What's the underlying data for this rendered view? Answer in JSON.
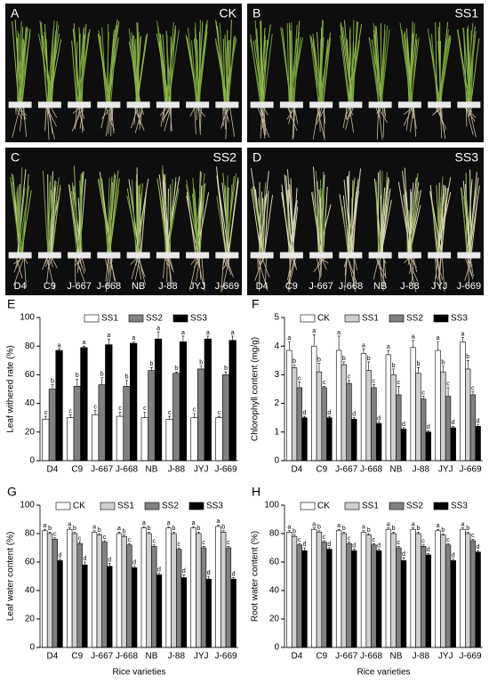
{
  "photos": {
    "panels": [
      {
        "letter": "A",
        "treatment": "CK"
      },
      {
        "letter": "B",
        "treatment": "SS1"
      },
      {
        "letter": "C",
        "treatment": "SS2",
        "labels": [
          "D4",
          "C9",
          "J-667",
          "J-668",
          "NB",
          "J-88",
          "JYJ",
          "J-669"
        ]
      },
      {
        "letter": "D",
        "treatment": "SS3",
        "labels": [
          "D4",
          "C9",
          "J-667",
          "J-668",
          "NB",
          "J-88",
          "JYJ",
          "J-669"
        ]
      }
    ]
  },
  "chart_data": [
    {
      "type": "bar",
      "panel": "E",
      "ylabel": "Leaf withered rate (%)",
      "categories": [
        "D4",
        "C9",
        "J-667",
        "J-668",
        "NB",
        "J-88",
        "JYJ",
        "J-669"
      ],
      "ylim": [
        0,
        100
      ],
      "yticks": [
        0,
        20,
        40,
        60,
        80,
        100
      ],
      "series": [
        {
          "name": "SS1",
          "color": "#ffffff",
          "values": [
            29,
            30,
            32,
            31,
            30,
            29,
            30,
            30
          ],
          "errors": [
            2,
            2,
            3,
            3,
            4,
            2,
            3,
            1
          ],
          "letters": [
            "c",
            "c",
            "c",
            "c",
            "c",
            "c",
            "c",
            "c"
          ]
        },
        {
          "name": "SS2",
          "color": "#808080",
          "values": [
            50,
            52,
            53,
            52,
            63,
            61,
            64,
            60
          ],
          "errors": [
            3,
            5,
            5,
            4,
            2,
            1,
            2,
            2
          ],
          "letters": [
            "b",
            "b",
            "b",
            "b",
            "b",
            "b",
            "b",
            "b"
          ]
        },
        {
          "name": "SS3",
          "color": "#000000",
          "values": [
            77,
            79,
            81,
            82,
            85,
            83,
            85,
            84
          ],
          "errors": [
            1,
            1,
            4,
            1,
            5,
            4,
            2,
            3
          ],
          "letters": [
            "a",
            "a",
            "a",
            "a",
            "a",
            "a",
            "a",
            "a"
          ]
        }
      ]
    },
    {
      "type": "bar",
      "panel": "F",
      "ylabel": "Chlorophyll content (mg/g)",
      "categories": [
        "D4",
        "C9",
        "J-667",
        "J-668",
        "NB",
        "J-88",
        "JYJ",
        "J-669"
      ],
      "ylim": [
        0,
        5
      ],
      "yticks": [
        0,
        1,
        2,
        3,
        4,
        5
      ],
      "series": [
        {
          "name": "CK",
          "color": "#ffffff",
          "values": [
            3.85,
            4.0,
            3.85,
            3.75,
            3.7,
            3.95,
            3.85,
            4.15
          ],
          "errors": [
            0.3,
            0.4,
            0.5,
            0.15,
            0.15,
            0.25,
            0.3,
            0.15
          ],
          "letters": [
            "a",
            "a",
            "a",
            "a",
            "a",
            "a",
            "a",
            "a"
          ]
        },
        {
          "name": "SS1",
          "color": "#d0d0d0",
          "values": [
            3.25,
            3.1,
            3.35,
            3.15,
            3.0,
            3.05,
            3.1,
            3.2
          ],
          "errors": [
            0.1,
            0.3,
            0.1,
            0.3,
            0.2,
            0.2,
            0.2,
            0.3
          ],
          "letters": [
            "b",
            "b",
            "b",
            "b",
            "b",
            "b",
            "b",
            "b"
          ]
        },
        {
          "name": "SS2",
          "color": "#808080",
          "values": [
            2.55,
            2.55,
            2.7,
            2.55,
            2.3,
            2.15,
            2.25,
            2.3
          ],
          "errors": [
            0.2,
            0.05,
            0.1,
            0.1,
            0.3,
            0.1,
            0.3,
            0.1
          ],
          "letters": [
            "c",
            "c",
            "c",
            "c",
            "c",
            "c",
            "c",
            "c"
          ]
        },
        {
          "name": "SS3",
          "color": "#000000",
          "values": [
            1.5,
            1.5,
            1.45,
            1.3,
            1.1,
            1.0,
            1.15,
            1.2
          ],
          "errors": [
            0.05,
            0.05,
            0.05,
            0.05,
            0.05,
            0.05,
            0.05,
            0.05
          ],
          "letters": [
            "d",
            "d",
            "d",
            "d",
            "d",
            "d",
            "d",
            "d"
          ]
        }
      ]
    },
    {
      "type": "bar",
      "panel": "G",
      "ylabel": "Leaf water content (%)",
      "xlabel": "Rice varieties",
      "categories": [
        "D4",
        "C9",
        "J-667",
        "J-668",
        "NB",
        "J-88",
        "JYJ",
        "J-669"
      ],
      "ylim": [
        0,
        100
      ],
      "yticks": [
        0,
        20,
        40,
        60,
        80,
        100
      ],
      "series": [
        {
          "name": "CK",
          "color": "#ffffff",
          "values": [
            82,
            83,
            81,
            80,
            84,
            84,
            84,
            85
          ],
          "errors": [
            1,
            1,
            1,
            1,
            1,
            1,
            1,
            1
          ],
          "letters": [
            "a",
            "a",
            "a",
            "a",
            "a",
            "a",
            "a",
            "a"
          ]
        },
        {
          "name": "SS1",
          "color": "#d0d0d0",
          "values": [
            80,
            80,
            79,
            78,
            80,
            80,
            80,
            81
          ],
          "errors": [
            1,
            1,
            1,
            1,
            1,
            1,
            1,
            1
          ],
          "letters": [
            "b",
            "b",
            "b",
            "b",
            "b",
            "b",
            "b",
            "b"
          ]
        },
        {
          "name": "SS2",
          "color": "#808080",
          "values": [
            76,
            73,
            74,
            72,
            71,
            69,
            70,
            70
          ],
          "errors": [
            1,
            1,
            1,
            1,
            1,
            1,
            1,
            1
          ],
          "letters": [
            "c",
            "c",
            "c",
            "c",
            "c",
            "c",
            "c",
            "c"
          ]
        },
        {
          "name": "SS3",
          "color": "#000000",
          "values": [
            61,
            58,
            57,
            56,
            51,
            49,
            48,
            48
          ],
          "errors": [
            1,
            2,
            2,
            1,
            1,
            2,
            2,
            1
          ],
          "letters": [
            "d",
            "d",
            "d",
            "d",
            "d",
            "d",
            "d",
            "d"
          ]
        }
      ]
    },
    {
      "type": "bar",
      "panel": "H",
      "ylabel": "Root water content (%)",
      "xlabel": "Rice varieties",
      "categories": [
        "D4",
        "C9",
        "J-667",
        "J-668",
        "NB",
        "J-88",
        "JYJ",
        "J-669"
      ],
      "ylim": [
        0,
        100
      ],
      "yticks": [
        0,
        20,
        40,
        60,
        80,
        100
      ],
      "series": [
        {
          "name": "CK",
          "color": "#ffffff",
          "values": [
            81,
            83,
            82,
            81,
            83,
            83,
            82,
            83
          ],
          "errors": [
            1,
            1,
            1,
            1,
            1,
            1,
            1,
            1
          ],
          "letters": [
            "a",
            "a",
            "a",
            "a",
            "a",
            "a",
            "a",
            "a"
          ]
        },
        {
          "name": "SS1",
          "color": "#d0d0d0",
          "values": [
            78,
            81,
            80,
            79,
            80,
            80,
            79,
            80
          ],
          "errors": [
            1,
            1,
            1,
            1,
            1,
            1,
            1,
            1
          ],
          "letters": [
            "b",
            "b",
            "b",
            "b",
            "b",
            "b",
            "b",
            "b"
          ]
        },
        {
          "name": "SS2",
          "color": "#808080",
          "values": [
            72,
            74,
            73,
            72,
            70,
            71,
            72,
            75
          ],
          "errors": [
            1,
            1,
            1,
            1,
            1,
            1,
            1,
            1
          ],
          "letters": [
            "c",
            "c",
            "c",
            "c",
            "c",
            "c",
            "c",
            "c"
          ]
        },
        {
          "name": "SS3",
          "color": "#000000",
          "values": [
            68,
            69,
            68,
            68,
            61,
            65,
            61,
            67
          ],
          "errors": [
            2,
            1,
            1,
            1,
            2,
            1,
            1,
            1
          ],
          "letters": [
            "d",
            "d",
            "d",
            "d",
            "d",
            "d",
            "d",
            "d"
          ]
        }
      ]
    }
  ]
}
